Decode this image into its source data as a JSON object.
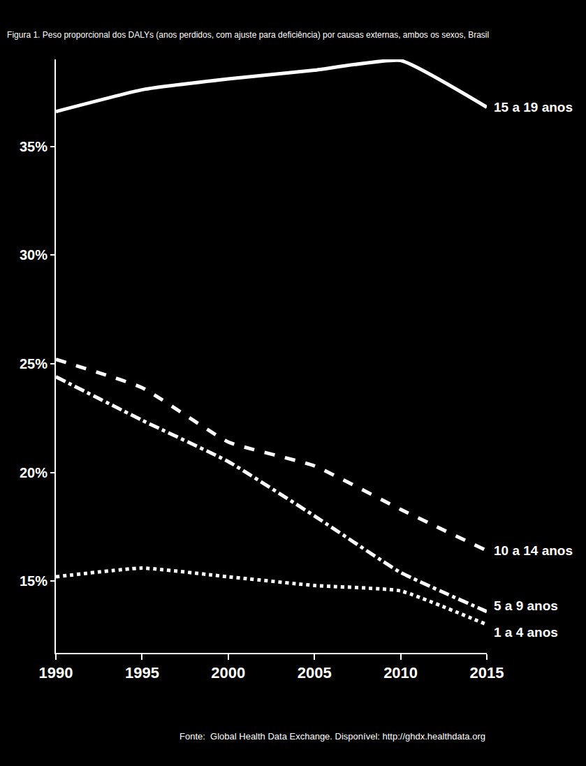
{
  "chart_data": {
    "type": "line",
    "title": "Figura 1. Peso proporcional dos DALYs (anos perdidos, com ajuste para deficiência) por causas externas, ambos os sexos, Brasil",
    "source": "Fonte:  Global Health Data Exchange. Disponível: http://ghdx.healthdata.org",
    "x": [
      1990,
      1995,
      2000,
      2005,
      2010,
      2015
    ],
    "series": [
      {
        "name": "15 a 19 anos",
        "color": "#ffffff",
        "line_style": "solid",
        "values": [
          36.6,
          37.6,
          38.1,
          38.5,
          38.95,
          36.8
        ]
      },
      {
        "name": "10 a 14 anos",
        "color": "#ffffff",
        "line_style": "dash",
        "values": [
          25.2,
          23.9,
          21.4,
          20.3,
          18.3,
          16.4
        ]
      },
      {
        "name": "5 a 9 anos",
        "color": "#ffffff",
        "line_style": "dashdot",
        "values": [
          24.4,
          22.4,
          20.5,
          18.0,
          15.4,
          13.6
        ]
      },
      {
        "name": "1 a 4 anos",
        "color": "#ffffff",
        "line_style": "dot",
        "values": [
          15.2,
          15.6,
          15.2,
          14.8,
          14.55,
          13.0
        ]
      }
    ],
    "xlim": [
      1990,
      2015
    ],
    "xticks": [
      1990,
      1995,
      2000,
      2005,
      2010,
      2015
    ],
    "ylim": [
      11.7,
      39
    ],
    "yticks": [
      {
        "value": 15,
        "label": "15%"
      },
      {
        "value": 20,
        "label": "20%"
      },
      {
        "value": 25,
        "label": "25%"
      },
      {
        "value": 30,
        "label": "30%"
      },
      {
        "value": 35,
        "label": "35%"
      }
    ],
    "grid": false
  }
}
